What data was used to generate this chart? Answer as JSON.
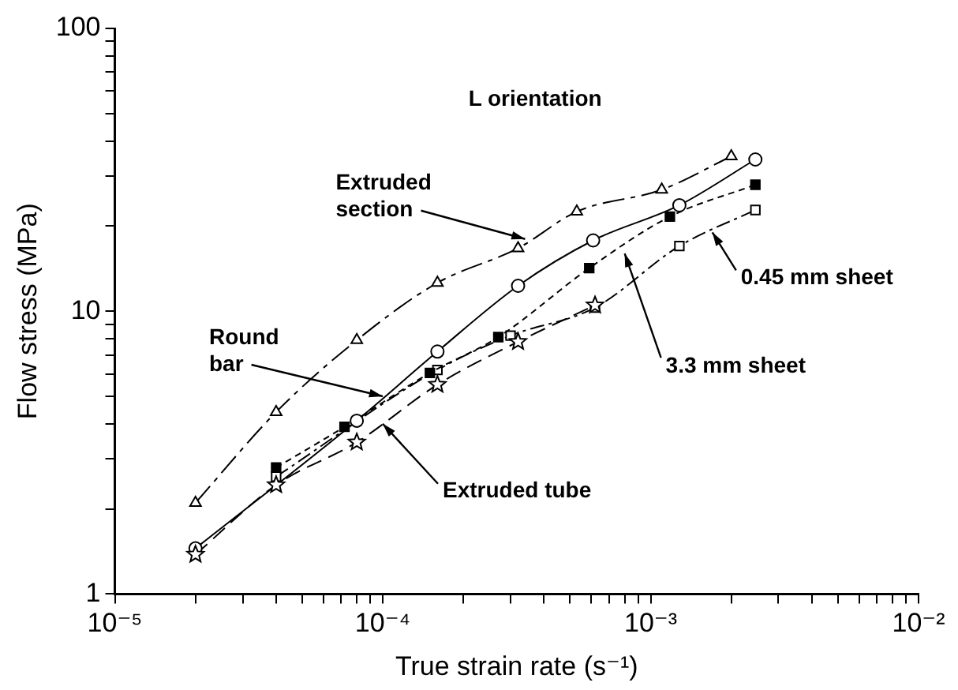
{
  "chart_data": {
    "type": "line",
    "xlabel": "True strain rate (s⁻¹)",
    "ylabel": "Flow stress (MPa)",
    "log": "xy",
    "grid": false,
    "xlim": [
      1e-05,
      0.01
    ],
    "ylim": [
      1,
      100
    ],
    "xticks": [
      {
        "value": 1e-05,
        "label": "10⁻⁵"
      },
      {
        "value": 2e-05,
        "label": null
      },
      {
        "value": 3e-05,
        "label": null
      },
      {
        "value": 4e-05,
        "label": null
      },
      {
        "value": 5e-05,
        "label": null
      },
      {
        "value": 6e-05,
        "label": null
      },
      {
        "value": 7e-05,
        "label": null
      },
      {
        "value": 8e-05,
        "label": null
      },
      {
        "value": 9e-05,
        "label": null
      },
      {
        "value": 0.0001,
        "label": "10⁻⁴"
      },
      {
        "value": 0.0002,
        "label": null
      },
      {
        "value": 0.0003,
        "label": null
      },
      {
        "value": 0.0004,
        "label": null
      },
      {
        "value": 0.0005,
        "label": null
      },
      {
        "value": 0.0006,
        "label": null
      },
      {
        "value": 0.0007,
        "label": null
      },
      {
        "value": 0.0008,
        "label": null
      },
      {
        "value": 0.0009,
        "label": null
      },
      {
        "value": 0.001,
        "label": "10⁻³"
      },
      {
        "value": 0.002,
        "label": null
      },
      {
        "value": 0.003,
        "label": null
      },
      {
        "value": 0.004,
        "label": null
      },
      {
        "value": 0.005,
        "label": null
      },
      {
        "value": 0.006,
        "label": null
      },
      {
        "value": 0.007,
        "label": null
      },
      {
        "value": 0.008,
        "label": null
      },
      {
        "value": 0.009,
        "label": null
      },
      {
        "value": 0.01,
        "label": "10⁻²"
      }
    ],
    "yticks": [
      1,
      {
        "value": 2,
        "label": null
      },
      {
        "value": 3,
        "label": null
      },
      {
        "value": 4,
        "label": null
      },
      {
        "value": 5,
        "label": null
      },
      {
        "value": 6,
        "label": null
      },
      {
        "value": 7,
        "label": null
      },
      {
        "value": 8,
        "label": null
      },
      {
        "value": 9,
        "label": null
      },
      10,
      {
        "value": 20,
        "label": null
      },
      {
        "value": 30,
        "label": null
      },
      {
        "value": 40,
        "label": null
      },
      {
        "value": 50,
        "label": null
      },
      {
        "value": 60,
        "label": null
      },
      {
        "value": 70,
        "label": null
      },
      {
        "value": 80,
        "label": null
      },
      {
        "value": 90,
        "label": null
      },
      100
    ],
    "annotations": [
      "L orientation",
      {
        "text": "Extruded section",
        "x": 0.00034,
        "y": 18
      },
      {
        "text": "Round bar",
        "x": 0.0001,
        "y": 5
      },
      {
        "text": "Extruded tube",
        "x": 0.0001,
        "y": 4
      },
      {
        "text": "3.3 mm sheet",
        "x": 0.0008,
        "y": 16
      },
      {
        "text": "0.45 mm sheet",
        "x": 0.0017,
        "y": 19
      }
    ],
    "series": [
      {
        "color": "#000000",
        "marker": "triangle",
        "line_style": "dashed",
        "x": [
          2e-05,
          4e-05,
          8e-05,
          0.00016,
          0.00032,
          0.00053,
          0.0011,
          0.002
        ],
        "values": [
          2.1,
          4.4,
          7.9,
          12.6,
          16.7,
          22.5,
          26.9,
          35.3
        ]
      },
      {
        "color": "#000000",
        "marker": "circle",
        "line_style": "solid",
        "x": [
          2e-05,
          8e-05,
          0.00016,
          0.00032,
          0.00061,
          0.00128,
          0.00246
        ],
        "values": [
          1.45,
          4.1,
          7.2,
          12.3,
          17.8,
          23.7,
          34.4
        ]
      },
      {
        "color": "#000000",
        "marker": "square",
        "line_style": "dashed",
        "x": [
          4e-05,
          7.2e-05,
          0.00015,
          0.00027,
          0.00059,
          0.00118,
          0.00246
        ],
        "values": [
          2.8,
          3.9,
          6.05,
          8.1,
          14.2,
          21.6,
          28
        ]
      },
      {
        "color": "#000000",
        "marker": "square",
        "line_style": "dashed",
        "x": [
          4e-05,
          0.00016,
          0.0003,
          0.00062,
          0.00128,
          0.00246
        ],
        "values": [
          2.6,
          6.2,
          8.2,
          10.3,
          17,
          22.8
        ]
      },
      {
        "color": "#000000",
        "marker": "star",
        "line_style": "dashed",
        "x": [
          2e-05,
          4e-05,
          8e-05,
          0.00016,
          0.00032,
          0.00062
        ],
        "values": [
          1.38,
          2.43,
          3.44,
          5.5,
          7.8,
          10.5
        ]
      }
    ]
  }
}
